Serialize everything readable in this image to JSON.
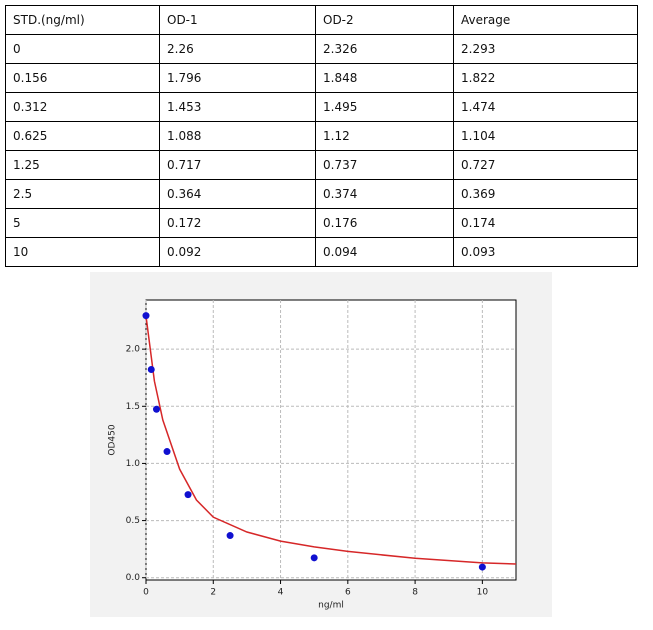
{
  "table": {
    "header": [
      "STD.(ng/ml)",
      "OD-1",
      "OD-2",
      "Average"
    ],
    "rows": [
      [
        "0",
        "2.26",
        "2.326",
        "2.293"
      ],
      [
        "0.156",
        "1.796",
        "1.848",
        "1.822"
      ],
      [
        "0.312",
        "1.453",
        "1.495",
        "1.474"
      ],
      [
        "0.625",
        "1.088",
        "1.12",
        "1.104"
      ],
      [
        "1.25",
        "0.717",
        "0.737",
        "0.727"
      ],
      [
        "2.5",
        "0.364",
        "0.374",
        "0.369"
      ],
      [
        "5",
        "0.172",
        "0.176",
        "0.174"
      ],
      [
        "10",
        "0.092",
        "0.094",
        "0.093"
      ]
    ]
  },
  "chart_data": {
    "type": "scatter",
    "x_label": "ng/ml",
    "y_label": "OD450",
    "xlim": [
      0,
      11
    ],
    "ylim": [
      -0.02,
      2.43
    ],
    "xticks": [
      0,
      2,
      4,
      6,
      8,
      10
    ],
    "yticks": [
      {
        "value": 0,
        "label": "0.0"
      },
      {
        "value": 0.5,
        "label": "0.5"
      },
      {
        "value": 1,
        "label": "1.0"
      },
      {
        "value": 1.5,
        "label": "1.5"
      },
      {
        "value": 2,
        "label": "2.0"
      }
    ],
    "grid": true,
    "series": [
      {
        "type": "line",
        "color": "#d62728",
        "x": [
          0,
          0.25,
          0.5,
          1,
          1.5,
          2,
          3,
          4,
          5,
          6,
          8,
          10,
          11
        ],
        "values": [
          2.29,
          1.72,
          1.38,
          0.95,
          0.68,
          0.53,
          0.4,
          0.32,
          0.27,
          0.23,
          0.17,
          0.13,
          0.12
        ]
      },
      {
        "type": "scatter",
        "color": "#1010d0",
        "x": [
          0,
          0.156,
          0.312,
          0.625,
          1.25,
          2.5,
          5,
          10
        ],
        "values": [
          2.293,
          1.822,
          1.474,
          1.104,
          0.727,
          0.369,
          0.174,
          0.093
        ]
      }
    ]
  }
}
